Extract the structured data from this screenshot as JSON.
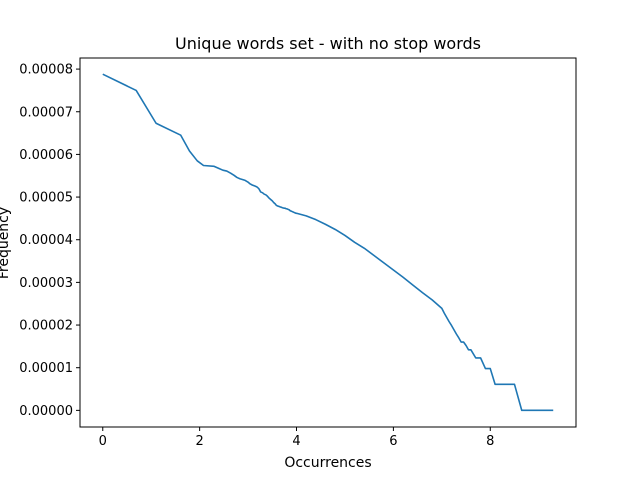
{
  "chart_data": {
    "type": "line",
    "title": "Unique words set - with no stop words",
    "xlabel": "Occurrences",
    "ylabel": "Frequency",
    "xlim": [
      -0.47,
      9.77
    ],
    "ylim": [
      -3.9e-06,
      8.26e-05
    ],
    "xticks": [
      0,
      2,
      4,
      6,
      8
    ],
    "xtick_labels": [
      "0",
      "2",
      "4",
      "6",
      "8"
    ],
    "yticks": [
      0,
      1e-05,
      2e-05,
      3e-05,
      4e-05,
      5e-05,
      6e-05,
      7e-05,
      8e-05
    ],
    "ytick_labels": [
      "0.00000",
      "0.00001",
      "0.00002",
      "0.00003",
      "0.00004",
      "0.00005",
      "0.00006",
      "0.00007",
      "0.00008"
    ],
    "grid": false,
    "series": [
      {
        "color": "#1f77b4",
        "x": [
          0,
          0.69,
          1.1,
          1.61,
          1.79,
          1.95,
          2.08,
          2.3,
          2.4,
          2.48,
          2.56,
          2.64,
          2.71,
          2.77,
          2.83,
          2.89,
          2.94,
          3.0,
          3.04,
          3.09,
          3.14,
          3.18,
          3.22,
          3.26,
          3.3,
          3.33,
          3.37,
          3.4,
          3.43,
          3.47,
          3.5,
          3.53,
          3.56,
          3.58,
          3.61,
          3.64,
          3.66,
          3.69,
          3.71,
          3.74,
          3.76,
          3.78,
          3.81,
          3.83,
          3.85,
          3.87,
          3.89,
          3.91,
          3.93,
          3.95,
          3.97,
          3.99,
          4.0,
          4.2,
          4.4,
          4.6,
          4.8,
          5.0,
          5.2,
          5.4,
          5.6,
          5.8,
          6.0,
          6.2,
          6.4,
          6.6,
          6.8,
          7.0,
          7.05,
          7.1,
          7.15,
          7.2,
          7.25,
          7.3,
          7.35,
          7.4,
          7.45,
          7.5,
          7.55,
          7.6,
          7.7,
          7.8,
          7.9,
          8.0,
          8.1,
          8.3,
          8.5,
          8.65,
          9.3
        ],
        "y": [
          7.88e-05,
          7.5e-05,
          6.73e-05,
          6.45e-05,
          6.08e-05,
          5.85e-05,
          5.74e-05,
          5.72e-05,
          5.67e-05,
          5.63e-05,
          5.61e-05,
          5.56e-05,
          5.51e-05,
          5.46e-05,
          5.43e-05,
          5.41e-05,
          5.39e-05,
          5.35e-05,
          5.31e-05,
          5.28e-05,
          5.26e-05,
          5.24e-05,
          5.2e-05,
          5.12e-05,
          5.1e-05,
          5.07e-05,
          5.05e-05,
          5.02e-05,
          4.98e-05,
          4.94e-05,
          4.91e-05,
          4.87e-05,
          4.84e-05,
          4.81e-05,
          4.79e-05,
          4.78e-05,
          4.77e-05,
          4.76e-05,
          4.75e-05,
          4.74e-05,
          4.74e-05,
          4.73e-05,
          4.72e-05,
          4.71e-05,
          4.7e-05,
          4.68e-05,
          4.67e-05,
          4.66e-05,
          4.65e-05,
          4.64e-05,
          4.63e-05,
          4.62e-05,
          4.62e-05,
          4.56e-05,
          4.47e-05,
          4.36e-05,
          4.24e-05,
          4.1e-05,
          3.94e-05,
          3.8e-05,
          3.63e-05,
          3.46e-05,
          3.29e-05,
          3.12e-05,
          2.94e-05,
          2.76e-05,
          2.59e-05,
          2.39e-05,
          2.28e-05,
          2.18e-05,
          2.08e-05,
          1.99e-05,
          1.89e-05,
          1.79e-05,
          1.7e-05,
          1.6e-05,
          1.6e-05,
          1.52e-05,
          1.42e-05,
          1.42e-05,
          1.23e-05,
          1.23e-05,
          9.8e-06,
          9.8e-06,
          6.1e-06,
          6.1e-06,
          6.1e-06,
          0.0,
          0.0
        ]
      }
    ]
  }
}
